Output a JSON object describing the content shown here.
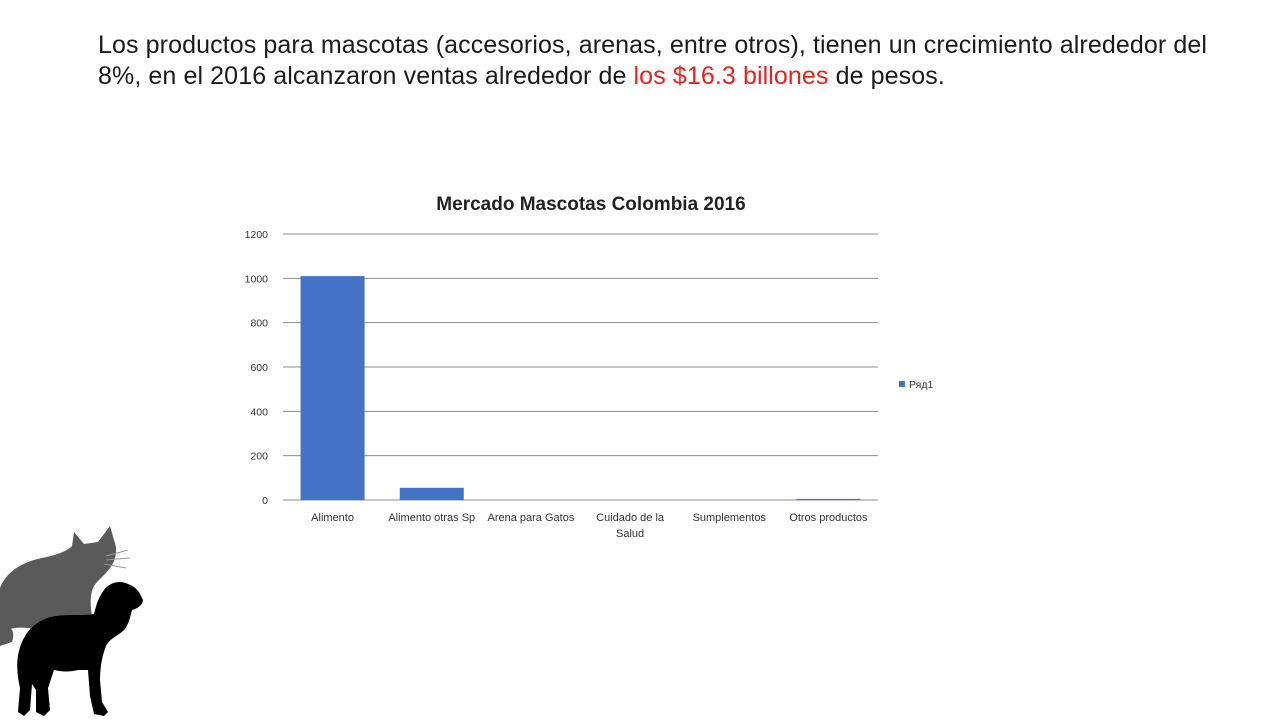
{
  "headline": {
    "part1": "Los productos para mascotas (accesorios, arenas, entre otros), tienen un crecimiento alrededor del 8%, en el 2016 alcanzaron ventas alrededor  de ",
    "highlight": "los $16.3 billones",
    "part2": " de pesos."
  },
  "colors": {
    "bar": "#4472c4",
    "accent": "#e8231f",
    "grid": "#8c8c8c"
  },
  "icons": {
    "pets": "cat-and-dog-silhouette"
  },
  "chart_data": {
    "type": "bar",
    "title": "Mercado Mascotas Colombia 2016",
    "categories": [
      [
        "Alimento"
      ],
      [
        "Alimento otras Sp"
      ],
      [
        "Arena para Gatos"
      ],
      [
        "Cuidado de la",
        "Salud"
      ],
      [
        "Sumplementos"
      ],
      [
        "Otros productos"
      ]
    ],
    "series": [
      {
        "name": "Ряд1",
        "values": [
          1010,
          55,
          0,
          0,
          0,
          5
        ]
      }
    ],
    "ylim": [
      0,
      1200
    ],
    "yticks": [
      0,
      200,
      400,
      600,
      800,
      1000,
      1200
    ],
    "grid": true,
    "legend": "right"
  }
}
